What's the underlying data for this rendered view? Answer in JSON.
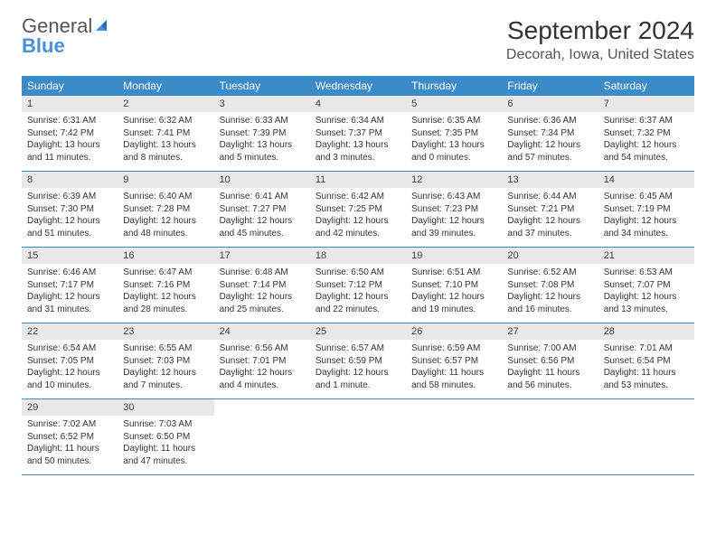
{
  "logo": {
    "text1": "General",
    "text2": "Blue"
  },
  "title": "September 2024",
  "location": "Decorah, Iowa, United States",
  "header_bg": "#3b8bc9",
  "daynum_bg": "#e8e8e8",
  "weekdays": [
    "Sunday",
    "Monday",
    "Tuesday",
    "Wednesday",
    "Thursday",
    "Friday",
    "Saturday"
  ],
  "weeks": [
    [
      {
        "n": "1",
        "sunrise": "6:31 AM",
        "sunset": "7:42 PM",
        "daylight": "13 hours and 11 minutes."
      },
      {
        "n": "2",
        "sunrise": "6:32 AM",
        "sunset": "7:41 PM",
        "daylight": "13 hours and 8 minutes."
      },
      {
        "n": "3",
        "sunrise": "6:33 AM",
        "sunset": "7:39 PM",
        "daylight": "13 hours and 5 minutes."
      },
      {
        "n": "4",
        "sunrise": "6:34 AM",
        "sunset": "7:37 PM",
        "daylight": "13 hours and 3 minutes."
      },
      {
        "n": "5",
        "sunrise": "6:35 AM",
        "sunset": "7:35 PM",
        "daylight": "13 hours and 0 minutes."
      },
      {
        "n": "6",
        "sunrise": "6:36 AM",
        "sunset": "7:34 PM",
        "daylight": "12 hours and 57 minutes."
      },
      {
        "n": "7",
        "sunrise": "6:37 AM",
        "sunset": "7:32 PM",
        "daylight": "12 hours and 54 minutes."
      }
    ],
    [
      {
        "n": "8",
        "sunrise": "6:39 AM",
        "sunset": "7:30 PM",
        "daylight": "12 hours and 51 minutes."
      },
      {
        "n": "9",
        "sunrise": "6:40 AM",
        "sunset": "7:28 PM",
        "daylight": "12 hours and 48 minutes."
      },
      {
        "n": "10",
        "sunrise": "6:41 AM",
        "sunset": "7:27 PM",
        "daylight": "12 hours and 45 minutes."
      },
      {
        "n": "11",
        "sunrise": "6:42 AM",
        "sunset": "7:25 PM",
        "daylight": "12 hours and 42 minutes."
      },
      {
        "n": "12",
        "sunrise": "6:43 AM",
        "sunset": "7:23 PM",
        "daylight": "12 hours and 39 minutes."
      },
      {
        "n": "13",
        "sunrise": "6:44 AM",
        "sunset": "7:21 PM",
        "daylight": "12 hours and 37 minutes."
      },
      {
        "n": "14",
        "sunrise": "6:45 AM",
        "sunset": "7:19 PM",
        "daylight": "12 hours and 34 minutes."
      }
    ],
    [
      {
        "n": "15",
        "sunrise": "6:46 AM",
        "sunset": "7:17 PM",
        "daylight": "12 hours and 31 minutes."
      },
      {
        "n": "16",
        "sunrise": "6:47 AM",
        "sunset": "7:16 PM",
        "daylight": "12 hours and 28 minutes."
      },
      {
        "n": "17",
        "sunrise": "6:48 AM",
        "sunset": "7:14 PM",
        "daylight": "12 hours and 25 minutes."
      },
      {
        "n": "18",
        "sunrise": "6:50 AM",
        "sunset": "7:12 PM",
        "daylight": "12 hours and 22 minutes."
      },
      {
        "n": "19",
        "sunrise": "6:51 AM",
        "sunset": "7:10 PM",
        "daylight": "12 hours and 19 minutes."
      },
      {
        "n": "20",
        "sunrise": "6:52 AM",
        "sunset": "7:08 PM",
        "daylight": "12 hours and 16 minutes."
      },
      {
        "n": "21",
        "sunrise": "6:53 AM",
        "sunset": "7:07 PM",
        "daylight": "12 hours and 13 minutes."
      }
    ],
    [
      {
        "n": "22",
        "sunrise": "6:54 AM",
        "sunset": "7:05 PM",
        "daylight": "12 hours and 10 minutes."
      },
      {
        "n": "23",
        "sunrise": "6:55 AM",
        "sunset": "7:03 PM",
        "daylight": "12 hours and 7 minutes."
      },
      {
        "n": "24",
        "sunrise": "6:56 AM",
        "sunset": "7:01 PM",
        "daylight": "12 hours and 4 minutes."
      },
      {
        "n": "25",
        "sunrise": "6:57 AM",
        "sunset": "6:59 PM",
        "daylight": "12 hours and 1 minute."
      },
      {
        "n": "26",
        "sunrise": "6:59 AM",
        "sunset": "6:57 PM",
        "daylight": "11 hours and 58 minutes."
      },
      {
        "n": "27",
        "sunrise": "7:00 AM",
        "sunset": "6:56 PM",
        "daylight": "11 hours and 56 minutes."
      },
      {
        "n": "28",
        "sunrise": "7:01 AM",
        "sunset": "6:54 PM",
        "daylight": "11 hours and 53 minutes."
      }
    ],
    [
      {
        "n": "29",
        "sunrise": "7:02 AM",
        "sunset": "6:52 PM",
        "daylight": "11 hours and 50 minutes."
      },
      {
        "n": "30",
        "sunrise": "7:03 AM",
        "sunset": "6:50 PM",
        "daylight": "11 hours and 47 minutes."
      },
      null,
      null,
      null,
      null,
      null
    ]
  ]
}
